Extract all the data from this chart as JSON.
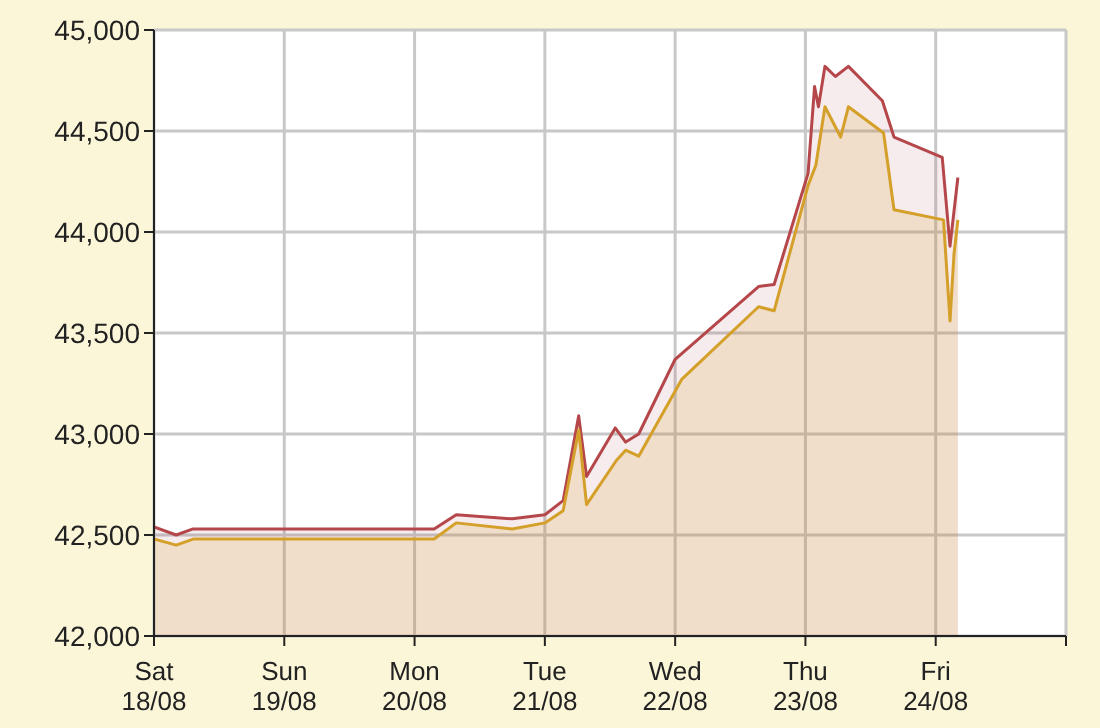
{
  "chart_data": {
    "type": "area",
    "xlim": [
      "--08-18",
      "--08-25"
    ],
    "xticks": [
      {
        "value": "--08-18",
        "label": "Sat\n18/08"
      },
      {
        "value": "--08-19",
        "label": "Sun\n19/08"
      },
      {
        "value": "--08-20",
        "label": "Mon\n20/08"
      },
      {
        "value": "--08-21",
        "label": "Tue\n21/08"
      },
      {
        "value": "--08-22",
        "label": "Wed\n22/08"
      },
      {
        "value": "--08-23",
        "label": "Thu\n23/08"
      },
      {
        "value": "--08-24",
        "label": "Fri\n24/08"
      },
      {
        "value": "--08-25",
        "label": null
      }
    ],
    "ylim": [
      42000,
      45000
    ],
    "yticks": [
      {
        "value": 42000,
        "label": "42,000"
      },
      {
        "value": 42500,
        "label": "42,500"
      },
      {
        "value": 43000,
        "label": "43,000"
      },
      {
        "value": 43500,
        "label": "43,500"
      },
      {
        "value": 44000,
        "label": "44,000"
      },
      {
        "value": 44500,
        "label": "44,500"
      },
      {
        "value": 45000,
        "label": "45,000"
      }
    ],
    "grid": true,
    "marker": "none",
    "line_style": "solid",
    "series": [
      {
        "color": "#b5474b",
        "x": [
          "--08-18T00:00",
          "--08-18T04:05",
          "--08-18T07:12",
          "--08-20T03:36",
          "--08-20T07:41",
          "--08-20T18:00",
          "--08-21T00:00",
          "--08-21T03:22",
          "--08-21T06:14",
          "--08-21T07:41",
          "--08-21T12:58",
          "--08-21T14:53",
          "--08-21T17:17",
          "--08-22T00:00",
          "--08-22T15:22",
          "--08-22T18:14",
          "--08-23T00:29",
          "--08-23T01:41",
          "--08-23T02:24",
          "--08-23T03:36",
          "--08-23T05:31",
          "--08-23T07:55",
          "--08-23T14:10",
          "--08-23T16:19",
          "--08-24T01:12",
          "--08-24T02:38",
          "--08-24T04:05"
        ],
        "values": [
          42540,
          42500,
          42530,
          42530,
          42600,
          42580,
          42600,
          42670,
          43090,
          42790,
          43030,
          42960,
          43000,
          43370,
          43730,
          43740,
          44290,
          44720,
          44620,
          44820,
          44770,
          44820,
          44650,
          44470,
          44370,
          43930,
          44270
        ]
      },
      {
        "color": "#d4a02a",
        "x": [
          "--08-18T00:00",
          "--08-18T04:05",
          "--08-18T07:12",
          "--08-20T03:36",
          "--08-20T07:41",
          "--08-20T18:00",
          "--08-21T00:00",
          "--08-21T03:22",
          "--08-21T06:14",
          "--08-21T07:41",
          "--08-21T13:12",
          "--08-21T14:53",
          "--08-21T17:17",
          "--08-22T01:12",
          "--08-22T15:22",
          "--08-22T18:14",
          "--08-23T00:29",
          "--08-23T01:55",
          "--08-23T03:36",
          "--08-23T06:29",
          "--08-23T07:55",
          "--08-23T14:24",
          "--08-23T16:19",
          "--08-24T01:26",
          "--08-24T02:38",
          "--08-24T03:22",
          "--08-24T04:05"
        ],
        "values": [
          42480,
          42450,
          42480,
          42480,
          42560,
          42530,
          42560,
          42620,
          43020,
          42650,
          42870,
          42920,
          42890,
          43270,
          43630,
          43610,
          44230,
          44330,
          44620,
          44470,
          44620,
          44490,
          44110,
          44060,
          43560,
          43890,
          44060
        ]
      }
    ]
  }
}
